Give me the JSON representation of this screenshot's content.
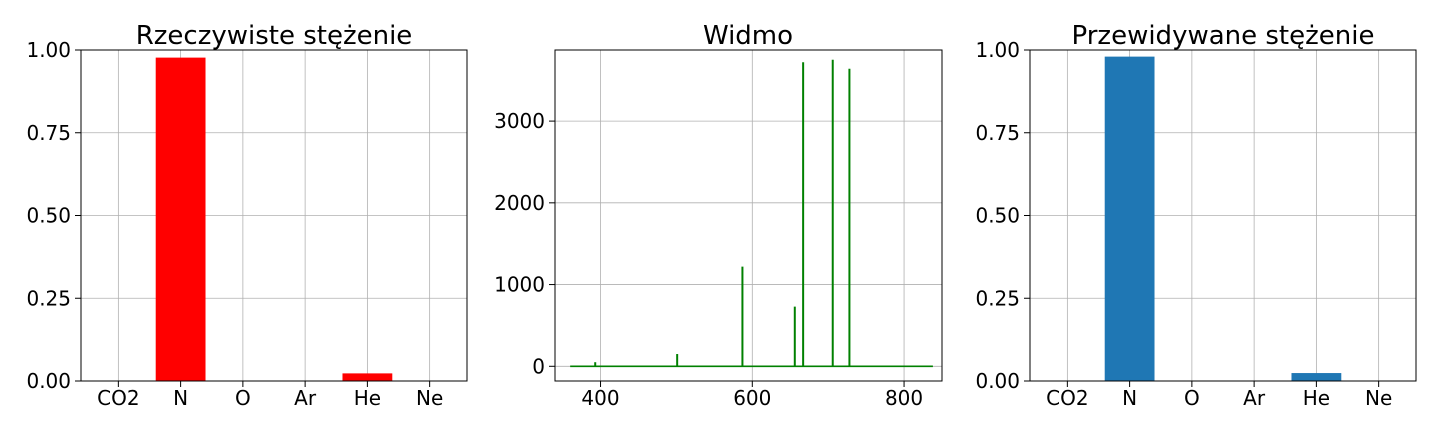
{
  "chart_data": [
    {
      "type": "bar",
      "title": "Rzeczywiste stężenie",
      "categories": [
        "CO2",
        "N",
        "O",
        "Ar",
        "He",
        "Ne"
      ],
      "values": [
        0.0,
        0.977,
        0.0,
        0.0,
        0.023,
        0.0
      ],
      "ylim": [
        0,
        1
      ],
      "yticks": [
        "0.00",
        "0.25",
        "0.50",
        "0.75",
        "1.00"
      ],
      "grid": true,
      "color": "#ff0000"
    },
    {
      "type": "line",
      "title": "Widmo",
      "xlim": [
        340,
        850
      ],
      "ylim": [
        -180,
        3870
      ],
      "xticks": [
        400,
        600,
        800
      ],
      "yticks": [
        0,
        1000,
        2000,
        3000
      ],
      "grid": true,
      "color": "#008000",
      "baseline_range": [
        360,
        838
      ],
      "peaks": [
        {
          "x": 393,
          "y": 50
        },
        {
          "x": 501,
          "y": 150
        },
        {
          "x": 587,
          "y": 1220
        },
        {
          "x": 656,
          "y": 730
        },
        {
          "x": 667,
          "y": 3720
        },
        {
          "x": 706,
          "y": 3750
        },
        {
          "x": 728,
          "y": 3640
        }
      ]
    },
    {
      "type": "bar",
      "title": "Przewidywane stężenie",
      "categories": [
        "CO2",
        "N",
        "O",
        "Ar",
        "He",
        "Ne"
      ],
      "values": [
        0.0,
        0.98,
        0.0,
        0.0,
        0.024,
        0.0
      ],
      "ylim": [
        0,
        1
      ],
      "yticks": [
        "0.00",
        "0.25",
        "0.50",
        "0.75",
        "1.00"
      ],
      "grid": true,
      "color": "#1f77b4"
    }
  ]
}
